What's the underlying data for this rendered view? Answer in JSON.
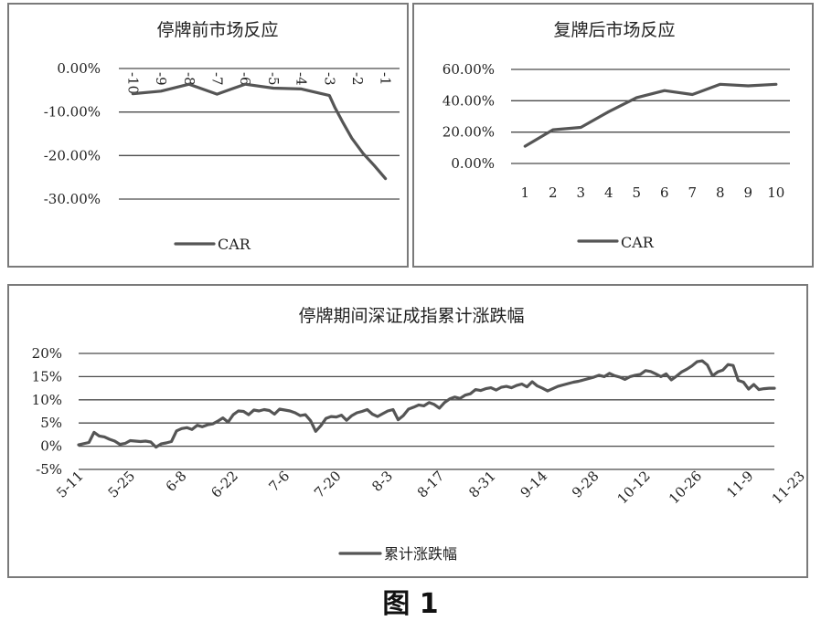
{
  "caption": "图 1",
  "chart_data": [
    {
      "type": "line",
      "title": "停牌前市场反应",
      "x": [
        "-10",
        "-9",
        "-8",
        "-7",
        "-6",
        "-5",
        "-4",
        "-3",
        "-2",
        "-1"
      ],
      "y_ticks": [
        "0.00%",
        "-10.00%",
        "-20.00%",
        "-30.00%"
      ],
      "ylim": [
        -30,
        0
      ],
      "series": [
        {
          "name": "CAR",
          "points": [
            [
              -10,
              -5.8
            ],
            [
              -9,
              -5.2
            ],
            [
              -8,
              -3.6
            ],
            [
              -7,
              -5.9
            ],
            [
              -6,
              -3.6
            ],
            [
              -5,
              -4.5
            ],
            [
              -4,
              -4.7
            ],
            [
              -3,
              -6.2
            ],
            [
              -2.8,
              -9.0
            ],
            [
              -2.5,
              -12.6
            ],
            [
              -2.2,
              -16.0
            ],
            [
              -1.8,
              -19.5
            ],
            [
              -1.4,
              -22.3
            ],
            [
              -1.0,
              -25.3
            ]
          ]
        }
      ],
      "legend": [
        "CAR"
      ],
      "legend_position": "bottom",
      "grid": true
    },
    {
      "type": "line",
      "title": "复牌后市场反应",
      "x": [
        "1",
        "2",
        "3",
        "4",
        "5",
        "6",
        "7",
        "8",
        "9",
        "10"
      ],
      "y_ticks": [
        "60.00%",
        "40.00%",
        "20.00%",
        "0.00%"
      ],
      "ylim": [
        0,
        60
      ],
      "series": [
        {
          "name": "CAR",
          "points": [
            [
              1,
              11
            ],
            [
              2,
              21.5
            ],
            [
              3,
              23
            ],
            [
              4,
              33
            ],
            [
              5,
              42
            ],
            [
              6,
              46.5
            ],
            [
              7,
              44
            ],
            [
              8,
              50.5
            ],
            [
              9,
              49.5
            ],
            [
              10,
              50.5
            ]
          ]
        }
      ],
      "legend": [
        "CAR"
      ],
      "legend_position": "bottom",
      "grid": true
    },
    {
      "type": "line",
      "title": "停牌期间深证成指累计涨跌幅",
      "x_ticks": [
        "5-11",
        "5-25",
        "6-8",
        "6-22",
        "7-6",
        "7-20",
        "8-3",
        "8-17",
        "8-31",
        "9-14",
        "9-28",
        "10-12",
        "10-26",
        "11-9",
        "11-23"
      ],
      "y_ticks": [
        "20%",
        "15%",
        "10%",
        "5%",
        "0%",
        "-5%"
      ],
      "ylim": [
        -5,
        20
      ],
      "series": [
        {
          "name": "累计涨跌幅",
          "points": [
            [
              0,
              0.3
            ],
            [
              2,
              0.8
            ],
            [
              3,
              3.0
            ],
            [
              4,
              2.2
            ],
            [
              5,
              2.0
            ],
            [
              6,
              1.5
            ],
            [
              7,
              1.1
            ],
            [
              8,
              0.4
            ],
            [
              9,
              0.6
            ],
            [
              10,
              1.2
            ],
            [
              11,
              1.1
            ],
            [
              12,
              1.0
            ],
            [
              13,
              1.1
            ],
            [
              14,
              0.9
            ],
            [
              15,
              -0.2
            ],
            [
              16,
              0.5
            ],
            [
              17,
              0.7
            ],
            [
              18,
              1.0
            ],
            [
              19,
              3.3
            ],
            [
              20,
              3.8
            ],
            [
              21,
              4.0
            ],
            [
              22,
              3.6
            ],
            [
              23,
              4.5
            ],
            [
              24,
              4.2
            ],
            [
              25,
              4.6
            ],
            [
              26,
              4.8
            ],
            [
              27,
              5.4
            ],
            [
              28,
              6.1
            ],
            [
              29,
              5.2
            ],
            [
              30,
              6.8
            ],
            [
              31,
              7.6
            ],
            [
              32,
              7.5
            ],
            [
              33,
              6.8
            ],
            [
              34,
              7.8
            ],
            [
              35,
              7.6
            ],
            [
              36,
              7.9
            ],
            [
              37,
              7.7
            ],
            [
              38,
              6.9
            ],
            [
              39,
              8.0
            ],
            [
              40,
              7.8
            ],
            [
              41,
              7.6
            ],
            [
              42,
              7.2
            ],
            [
              43,
              6.6
            ],
            [
              44,
              6.8
            ],
            [
              45,
              5.5
            ],
            [
              46,
              3.2
            ],
            [
              47,
              4.4
            ],
            [
              48,
              6.0
            ],
            [
              49,
              6.4
            ],
            [
              50,
              6.3
            ],
            [
              51,
              6.7
            ],
            [
              52,
              5.6
            ],
            [
              53,
              6.6
            ],
            [
              54,
              7.2
            ],
            [
              55,
              7.5
            ],
            [
              56,
              7.9
            ],
            [
              57,
              6.9
            ],
            [
              58,
              6.4
            ],
            [
              59,
              7.0
            ],
            [
              60,
              7.6
            ],
            [
              61,
              7.9
            ],
            [
              62,
              5.7
            ],
            [
              63,
              6.6
            ],
            [
              64,
              8.0
            ],
            [
              65,
              8.4
            ],
            [
              66,
              8.9
            ],
            [
              67,
              8.7
            ],
            [
              68,
              9.4
            ],
            [
              69,
              9.0
            ],
            [
              70,
              8.2
            ],
            [
              71,
              9.4
            ],
            [
              72,
              10.2
            ],
            [
              73,
              10.6
            ],
            [
              74,
              10.3
            ],
            [
              75,
              11.0
            ],
            [
              76,
              11.3
            ],
            [
              77,
              12.2
            ],
            [
              78,
              12.0
            ],
            [
              79,
              12.4
            ],
            [
              80,
              12.6
            ],
            [
              81,
              12.1
            ],
            [
              82,
              12.7
            ],
            [
              83,
              12.9
            ],
            [
              84,
              12.6
            ],
            [
              85,
              13.1
            ],
            [
              86,
              13.4
            ],
            [
              87,
              12.8
            ],
            [
              88,
              13.9
            ],
            [
              89,
              13.0
            ],
            [
              90,
              12.5
            ],
            [
              91,
              11.9
            ],
            [
              92,
              12.4
            ],
            [
              93,
              12.9
            ],
            [
              94,
              13.2
            ],
            [
              95,
              13.5
            ],
            [
              96,
              13.8
            ],
            [
              97,
              14.0
            ],
            [
              98,
              14.3
            ],
            [
              99,
              14.6
            ],
            [
              100,
              14.9
            ],
            [
              101,
              15.3
            ],
            [
              102,
              15.0
            ],
            [
              103,
              15.7
            ],
            [
              104,
              15.2
            ],
            [
              105,
              14.9
            ],
            [
              106,
              14.4
            ],
            [
              107,
              15.0
            ],
            [
              108,
              15.3
            ],
            [
              109,
              15.5
            ],
            [
              110,
              16.3
            ],
            [
              111,
              16.1
            ],
            [
              112,
              15.6
            ],
            [
              113,
              15.0
            ],
            [
              114,
              15.6
            ],
            [
              115,
              14.3
            ],
            [
              116,
              15.1
            ],
            [
              117,
              16.0
            ],
            [
              118,
              16.6
            ],
            [
              119,
              17.3
            ],
            [
              120,
              18.2
            ],
            [
              121,
              18.4
            ],
            [
              122,
              17.5
            ],
            [
              123,
              15.2
            ],
            [
              124,
              16.0
            ],
            [
              125,
              16.4
            ],
            [
              126,
              17.6
            ],
            [
              127,
              17.4
            ],
            [
              128,
              14.2
            ],
            [
              129,
              13.8
            ],
            [
              130,
              12.3
            ],
            [
              131,
              13.3
            ],
            [
              132,
              12.2
            ],
            [
              133,
              12.4
            ],
            [
              134,
              12.5
            ],
            [
              135,
              12.5
            ]
          ]
        }
      ],
      "legend": [
        "累计涨跌幅"
      ],
      "legend_position": "bottom",
      "grid": true
    }
  ]
}
